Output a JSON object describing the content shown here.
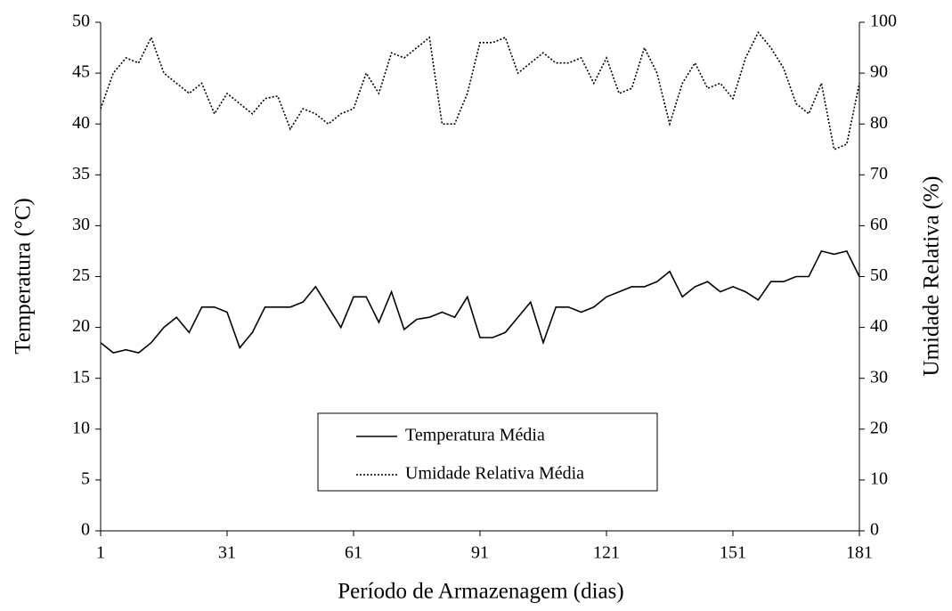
{
  "chart_data": {
    "type": "line",
    "xlabel": "Período de Armazenagem (dias)",
    "ylabel": "Temperatura (°C)",
    "y2label": "Umidade Relativa (%)",
    "x": [
      1,
      4,
      7,
      10,
      13,
      16,
      19,
      22,
      25,
      28,
      31,
      34,
      37,
      40,
      43,
      46,
      49,
      52,
      55,
      58,
      61,
      64,
      67,
      70,
      73,
      76,
      79,
      82,
      85,
      88,
      91,
      94,
      97,
      100,
      103,
      106,
      109,
      112,
      115,
      118,
      121,
      124,
      127,
      130,
      133,
      136,
      139,
      142,
      145,
      148,
      151,
      154,
      157,
      160,
      163,
      166,
      169,
      172,
      175,
      178,
      181
    ],
    "series": [
      {
        "name": "Temperatura Média",
        "color": "#000000",
        "dash": false,
        "values": [
          18.5,
          17.5,
          17.8,
          17.5,
          18.5,
          20,
          21,
          19.5,
          22,
          22,
          21.5,
          18,
          19.5,
          22,
          22,
          22,
          22.5,
          24,
          22,
          20,
          23,
          23,
          20.5,
          23.5,
          19.8,
          20.8,
          21,
          21.5,
          21,
          23,
          19,
          19,
          19.5,
          21,
          22.5,
          18.5,
          22,
          22,
          21.5,
          22,
          23,
          23.5,
          24,
          24,
          24.5,
          25.5,
          23,
          24,
          24.5,
          23.5,
          24,
          23.5,
          22.7,
          24.5,
          24.5,
          25,
          25,
          27.5,
          27.2,
          27.5,
          25
        ]
      },
      {
        "name": "Umidade Relativa Média",
        "color": "#000000",
        "dash": true,
        "axis": "y2",
        "values": [
          83,
          90,
          93,
          92,
          97,
          90,
          88,
          86,
          88,
          82,
          86,
          84,
          82,
          85,
          85.5,
          79,
          83,
          82,
          80,
          82,
          83,
          90,
          86,
          94,
          93,
          95,
          97,
          80,
          80,
          86,
          96,
          96,
          97,
          90,
          92,
          94,
          92,
          92,
          93,
          88,
          93,
          86,
          87,
          95,
          90,
          80,
          88,
          92,
          87,
          88,
          85,
          93,
          98,
          95,
          91,
          84,
          82,
          88,
          75,
          76,
          88
        ]
      }
    ],
    "xlim": [
      1,
      181
    ],
    "xticks": [
      1,
      31,
      61,
      91,
      121,
      151,
      181
    ],
    "ylim": [
      0,
      50
    ],
    "yticks": [
      0,
      5,
      10,
      15,
      20,
      25,
      30,
      35,
      40,
      45,
      50
    ],
    "y2lim": [
      0,
      100
    ],
    "y2ticks": [
      0,
      10,
      20,
      30,
      40,
      50,
      60,
      70,
      80,
      90,
      100
    ],
    "legend": "inside-bottom"
  }
}
